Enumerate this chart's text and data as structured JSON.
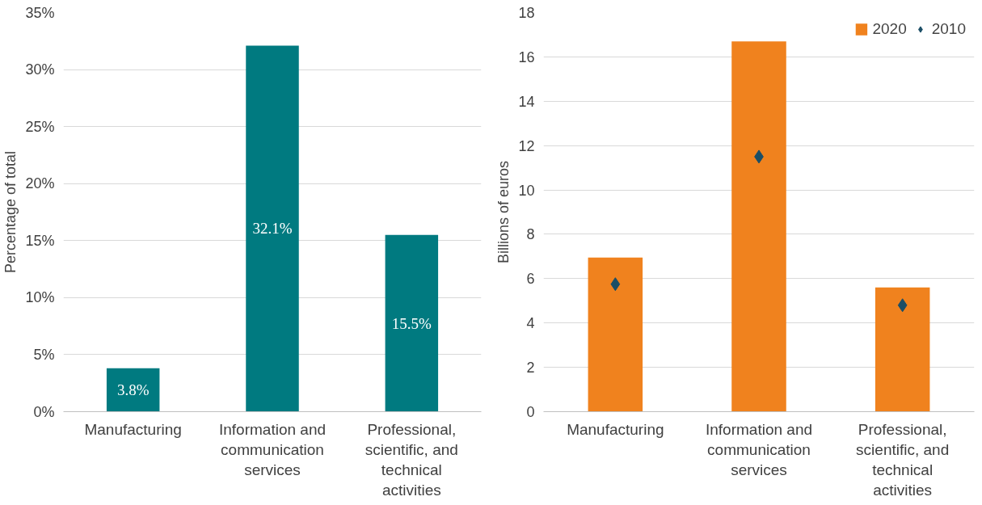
{
  "chart_data": [
    {
      "type": "bar",
      "categories": [
        "Manufacturing",
        "Information and communication services",
        "Professional, scientific, and technical activities"
      ],
      "values": [
        3.8,
        32.1,
        15.5
      ],
      "color": "#007a80",
      "value_labels": [
        "3.8%",
        "32.1%",
        "15.5%"
      ],
      "ylabel": "Percentage of total",
      "ylim": [
        0,
        35
      ],
      "yticks": [
        {
          "value": 0,
          "label": "0%"
        },
        {
          "value": 5,
          "label": "5%"
        },
        {
          "value": 10,
          "label": "10%"
        },
        {
          "value": 15,
          "label": "15%"
        },
        {
          "value": 20,
          "label": "20%"
        },
        {
          "value": 25,
          "label": "25%"
        },
        {
          "value": 30,
          "label": "30%"
        },
        {
          "value": 35,
          "label": "35%"
        }
      ],
      "grid": "y"
    },
    {
      "type": "bar",
      "categories": [
        "Manufacturing",
        "Information and communication services",
        "Professional, scientific, and technical activities"
      ],
      "series": [
        {
          "name": "2020",
          "type": "bar",
          "color": "#f0821e",
          "values": [
            6.95,
            16.7,
            5.6
          ]
        },
        {
          "name": "2010",
          "type": "scatter",
          "color": "#1b4e66",
          "values": [
            5.75,
            11.5,
            4.8
          ]
        }
      ],
      "marker": "diamond",
      "ylabel": "Billions of euros",
      "ylim": [
        0,
        18
      ],
      "yticks": [
        0,
        2,
        4,
        6,
        8,
        10,
        12,
        14,
        16,
        18
      ],
      "grid": "y",
      "legend": "top right"
    }
  ]
}
